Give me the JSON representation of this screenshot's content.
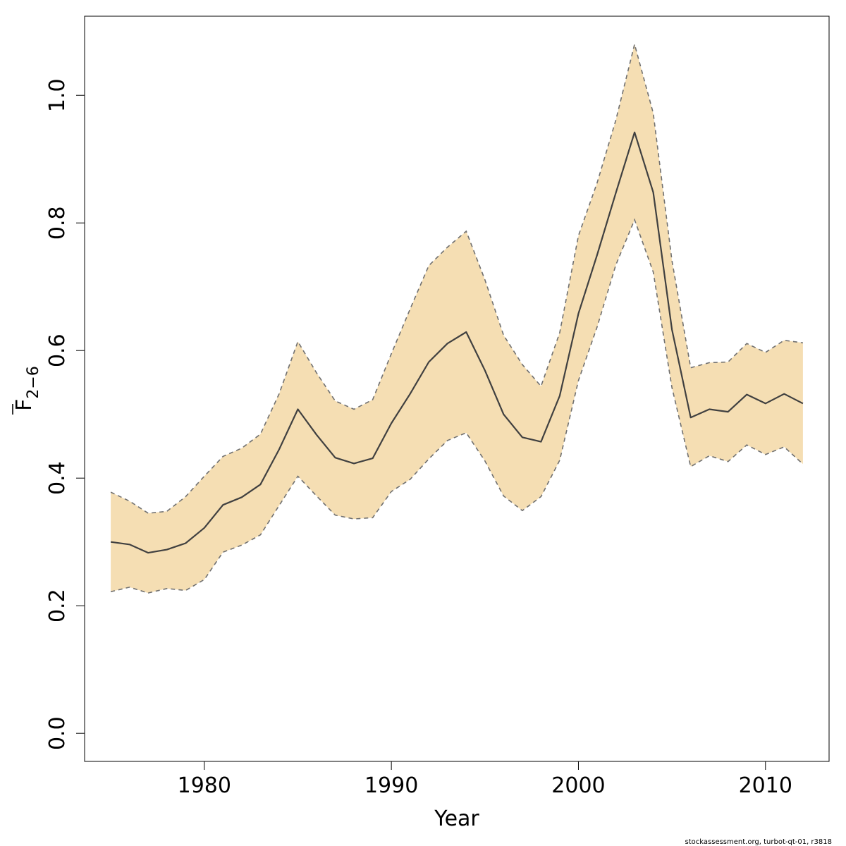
{
  "chart_data": {
    "type": "line",
    "xlabel": "Year",
    "ylabel": {
      "main": "F",
      "subscript": "2−6"
    },
    "xlim": [
      1973.6,
      2013.4
    ],
    "ylim": [
      -0.044,
      1.124
    ],
    "x_ticks": [
      1980,
      1990,
      2000,
      2010
    ],
    "y_ticks": [
      0.0,
      0.2,
      0.4,
      0.6,
      0.8,
      1.0
    ],
    "y_tick_labels": [
      "0.0",
      "0.2",
      "0.4",
      "0.6",
      "0.8",
      "1.0"
    ],
    "x": [
      1975,
      1976,
      1977,
      1978,
      1979,
      1980,
      1981,
      1982,
      1983,
      1984,
      1985,
      1986,
      1987,
      1988,
      1989,
      1990,
      1991,
      1992,
      1993,
      1994,
      1995,
      1996,
      1997,
      1998,
      1999,
      2000,
      2001,
      2002,
      2003,
      2004,
      2005,
      2006,
      2007,
      2008,
      2009,
      2010,
      2011,
      2012
    ],
    "series": [
      {
        "role": "estimate",
        "line_style": "solid",
        "values": [
          0.3,
          0.296,
          0.283,
          0.288,
          0.298,
          0.322,
          0.358,
          0.37,
          0.39,
          0.445,
          0.508,
          0.468,
          0.432,
          0.423,
          0.431,
          0.486,
          0.532,
          0.582,
          0.611,
          0.629,
          0.569,
          0.5,
          0.464,
          0.457,
          0.529,
          0.658,
          0.75,
          0.847,
          0.942,
          0.848,
          0.633,
          0.495,
          0.508,
          0.504,
          0.531,
          0.517,
          0.532,
          0.517
        ]
      },
      {
        "role": "upper_bound",
        "line_style": "dashed",
        "values": [
          0.378,
          0.364,
          0.345,
          0.348,
          0.371,
          0.403,
          0.434,
          0.447,
          0.469,
          0.532,
          0.614,
          0.565,
          0.521,
          0.508,
          0.523,
          0.595,
          0.665,
          0.733,
          0.762,
          0.787,
          0.711,
          0.624,
          0.578,
          0.544,
          0.628,
          0.78,
          0.863,
          0.961,
          1.08,
          0.972,
          0.741,
          0.573,
          0.581,
          0.582,
          0.611,
          0.597,
          0.616,
          0.612
        ]
      },
      {
        "role": "lower_bound",
        "line_style": "dashed",
        "values": [
          0.222,
          0.229,
          0.22,
          0.227,
          0.224,
          0.241,
          0.284,
          0.295,
          0.311,
          0.357,
          0.403,
          0.372,
          0.342,
          0.336,
          0.338,
          0.379,
          0.398,
          0.43,
          0.459,
          0.471,
          0.427,
          0.372,
          0.349,
          0.371,
          0.428,
          0.553,
          0.637,
          0.734,
          0.805,
          0.723,
          0.542,
          0.418,
          0.435,
          0.426,
          0.452,
          0.437,
          0.449,
          0.422
        ]
      }
    ],
    "band_fill": "#f5deb3",
    "line_color": "#404040",
    "bound_color": "#707070",
    "grid": false,
    "legend": "none"
  },
  "credit": "stockassessment.org, turbot-qt-01, r3818"
}
